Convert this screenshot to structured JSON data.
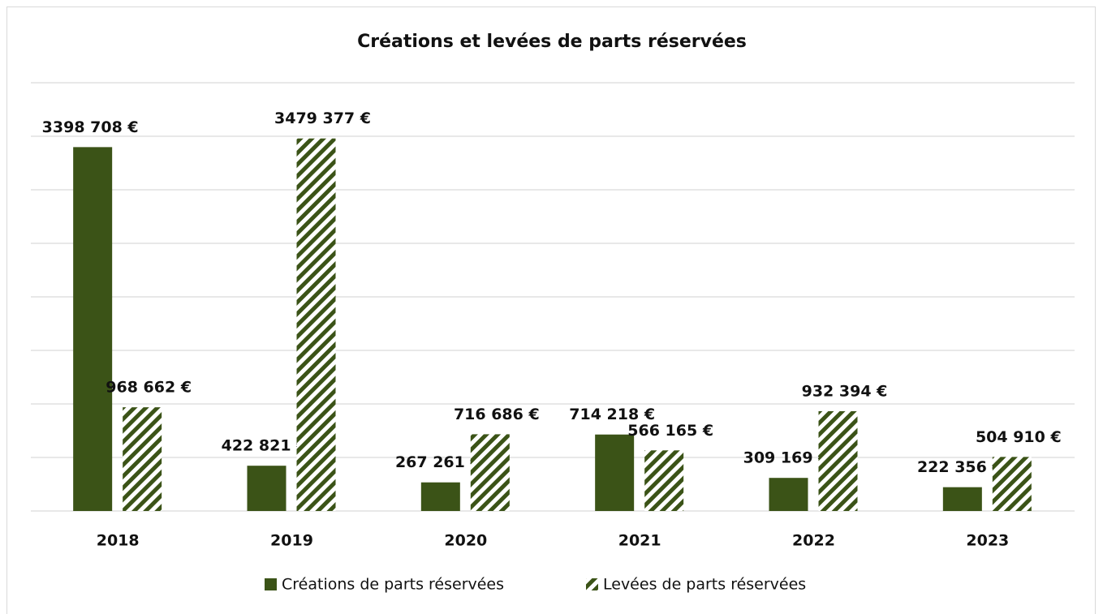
{
  "chart_data": {
    "type": "bar",
    "title": "Créations et levées de parts réservées",
    "categories": [
      "2018",
      "2019",
      "2020",
      "2021",
      "2022",
      "2023"
    ],
    "series": [
      {
        "name": "Créations de parts réservées",
        "color": "#3b5317",
        "pattern": "solid",
        "values": [
          3398708,
          422821,
          267261,
          714218,
          309169,
          222356
        ],
        "value_labels": [
          "3398 708 €",
          "422 821 €",
          "267 261 €",
          "714 218 €",
          "309 169 €",
          "222 356 €"
        ]
      },
      {
        "name": "Levées de parts réservées",
        "color": "#3b5317",
        "pattern": "hatched",
        "values": [
          968662,
          3479377,
          716686,
          566165,
          932394,
          504910
        ],
        "value_labels": [
          "968 662 €",
          "3479 377 €",
          "716 686 €",
          "566 165 €",
          "932 394 €",
          "504 910 €"
        ]
      }
    ],
    "ylim": [
      0,
      4000000
    ],
    "yticks": [
      0,
      500000,
      1000000,
      1500000,
      2000000,
      2500000,
      3000000,
      3500000,
      4000000
    ],
    "grid": true,
    "legend": "bottom"
  }
}
